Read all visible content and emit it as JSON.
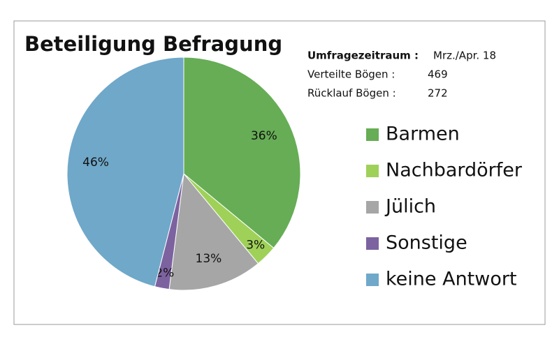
{
  "chart_data": {
    "type": "pie",
    "title": "Beteiligung Befragung",
    "categories": [
      "Barmen",
      "Nachbardörfer",
      "Jülich",
      "Sonstige",
      "keine Antwort"
    ],
    "values": [
      36,
      3,
      13,
      2,
      46
    ],
    "value_labels": [
      "36%",
      "3%",
      "13%",
      "2%",
      "46%"
    ],
    "colors": [
      "#66ad55",
      "#9fd159",
      "#a6a6a6",
      "#7d62a0",
      "#6fa8c9"
    ],
    "legend": "right",
    "annotations": [
      {
        "label": "Umfragezeitraum :",
        "value": "Mrz./Apr. 18"
      },
      {
        "label": "Verteilte  Bögen :",
        "value": 469
      },
      {
        "label": "Rücklauf Bögen :",
        "value": 272
      }
    ]
  }
}
